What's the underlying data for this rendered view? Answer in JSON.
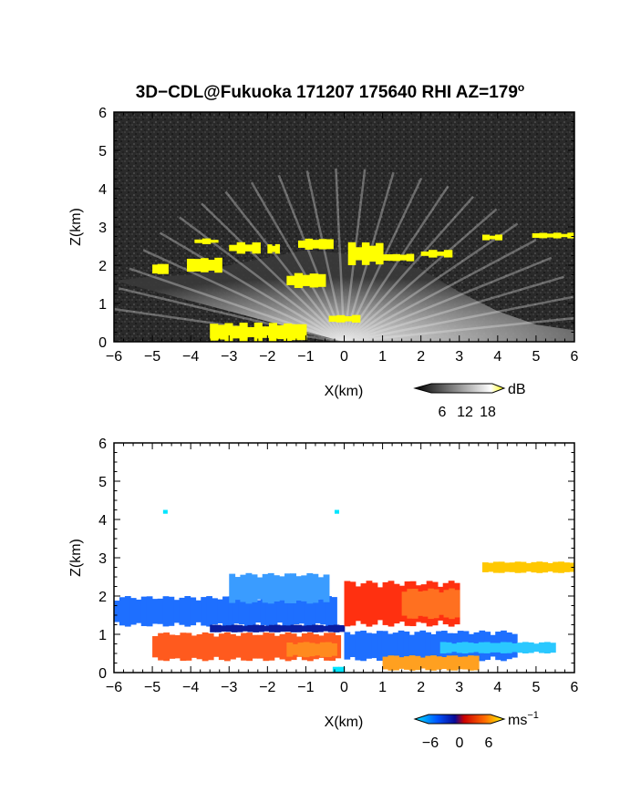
{
  "title": "3D−CDL@Fukuoka 171207 175640 RHI AZ=179",
  "title_sup": "o",
  "chart_data": [
    {
      "type": "heatmap",
      "panel": "reflectivity",
      "xlabel": "X(km)",
      "ylabel": "Z(km)",
      "xlim": [
        -6,
        6
      ],
      "ylim": [
        0,
        6
      ],
      "x_ticks": [
        "−6",
        "−5",
        "−4",
        "−3",
        "−2",
        "−1",
        "0",
        "1",
        "2",
        "3",
        "4",
        "5",
        "6"
      ],
      "y_ticks": [
        "0",
        "1",
        "2",
        "3",
        "4",
        "5",
        "6"
      ],
      "background_color": "#2a2a2a",
      "colorbar": {
        "unit": "dB",
        "ticks": [
          "6",
          "12",
          "18"
        ],
        "range": [
          0,
          21
        ],
        "colors": [
          "#000000",
          "#ffffff",
          "#ffff00"
        ]
      },
      "strong_echo_patches": [
        {
          "x": [
            -5.0,
            -4.6
          ],
          "z": [
            1.75,
            2.05
          ]
        },
        {
          "x": [
            -4.1,
            -3.2
          ],
          "z": [
            1.8,
            2.2
          ]
        },
        {
          "x": [
            -3.9,
            -3.3
          ],
          "z": [
            2.55,
            2.7
          ]
        },
        {
          "x": [
            -3.0,
            -2.2
          ],
          "z": [
            2.3,
            2.6
          ]
        },
        {
          "x": [
            -2.0,
            -1.7
          ],
          "z": [
            2.3,
            2.55
          ]
        },
        {
          "x": [
            -1.2,
            -0.3
          ],
          "z": [
            2.4,
            2.7
          ]
        },
        {
          "x": [
            -1.5,
            -0.5
          ],
          "z": [
            1.4,
            1.8
          ]
        },
        {
          "x": [
            0.1,
            1.0
          ],
          "z": [
            2.0,
            2.6
          ]
        },
        {
          "x": [
            0.9,
            1.8
          ],
          "z": [
            2.1,
            2.3
          ]
        },
        {
          "x": [
            2.0,
            2.8
          ],
          "z": [
            2.2,
            2.4
          ]
        },
        {
          "x": [
            3.6,
            4.1
          ],
          "z": [
            2.65,
            2.8
          ]
        },
        {
          "x": [
            4.9,
            6.0
          ],
          "z": [
            2.7,
            2.85
          ]
        },
        {
          "x": [
            -0.4,
            0.4
          ],
          "z": [
            0.5,
            0.7
          ]
        },
        {
          "x": [
            -3.5,
            -1.0
          ],
          "z": [
            0.0,
            0.5
          ]
        }
      ]
    },
    {
      "type": "heatmap",
      "panel": "doppler_velocity",
      "xlabel": "X(km)",
      "ylabel": "Z(km)",
      "xlim": [
        -6,
        6
      ],
      "ylim": [
        0,
        6
      ],
      "x_ticks": [
        "−6",
        "−5",
        "−4",
        "−3",
        "−2",
        "−1",
        "0",
        "1",
        "2",
        "3",
        "4",
        "5",
        "6"
      ],
      "y_ticks": [
        "0",
        "1",
        "2",
        "3",
        "4",
        "5",
        "6"
      ],
      "background_color": "#ffffff",
      "colorbar": {
        "unit": "ms",
        "unit_sup": "−1",
        "ticks": [
          "−6",
          "0",
          "6"
        ],
        "range": [
          -9,
          9
        ],
        "colors": [
          "#00e5ff",
          "#0055ff",
          "#0a0a96",
          "#cc0000",
          "#ff6a00",
          "#ffff00"
        ]
      },
      "regions": [
        {
          "color": "#1e6fff",
          "x": [
            -6.0,
            -0.2
          ],
          "z": [
            1.2,
            2.0
          ]
        },
        {
          "color": "#3a9cff",
          "x": [
            -3.0,
            -0.4
          ],
          "z": [
            1.8,
            2.6
          ]
        },
        {
          "color": "#0a1ea0",
          "x": [
            -3.5,
            0.0
          ],
          "z": [
            1.05,
            1.25
          ]
        },
        {
          "color": "#ff5a1e",
          "x": [
            -5.0,
            -0.1
          ],
          "z": [
            0.3,
            1.05
          ]
        },
        {
          "color": "#ff8a1e",
          "x": [
            -1.5,
            -0.2
          ],
          "z": [
            0.4,
            0.8
          ]
        },
        {
          "color": "#ff3010",
          "x": [
            0.0,
            3.0
          ],
          "z": [
            1.2,
            2.4
          ]
        },
        {
          "color": "#ff7020",
          "x": [
            1.5,
            3.0
          ],
          "z": [
            1.4,
            2.2
          ]
        },
        {
          "color": "#1e6fff",
          "x": [
            0.0,
            4.5
          ],
          "z": [
            0.3,
            1.1
          ]
        },
        {
          "color": "#2ac8ff",
          "x": [
            2.5,
            5.5
          ],
          "z": [
            0.5,
            0.8
          ]
        },
        {
          "color": "#ffa020",
          "x": [
            1.0,
            3.5
          ],
          "z": [
            0.05,
            0.45
          ]
        },
        {
          "color": "#ffc800",
          "x": [
            3.6,
            6.0
          ],
          "z": [
            2.6,
            2.9
          ]
        },
        {
          "color": "#00e5ff",
          "x": [
            -0.3,
            0.0
          ],
          "z": [
            0.0,
            0.15
          ]
        },
        {
          "color": "#00e5ff",
          "x": [
            -4.72,
            -4.62
          ],
          "z": [
            4.15,
            4.25
          ]
        },
        {
          "color": "#00e5ff",
          "x": [
            -0.25,
            -0.15
          ],
          "z": [
            4.15,
            4.25
          ]
        }
      ]
    }
  ]
}
